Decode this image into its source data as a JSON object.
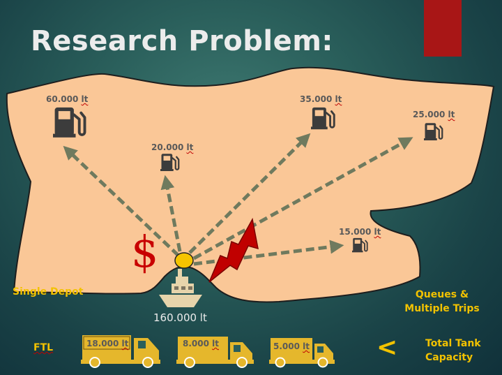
{
  "title": "Research Problem:",
  "stations": [
    {
      "value": "60.000",
      "unit": "lt"
    },
    {
      "value": "20.000",
      "unit": "lt"
    },
    {
      "value": "35.000",
      "unit": "lt"
    },
    {
      "value": "25.000",
      "unit": "lt"
    },
    {
      "value": "15.000",
      "unit": "lt"
    }
  ],
  "depot": {
    "label": "Single Depot",
    "ship_capacity": "160.000 lt",
    "ship_icon": "ship-icon"
  },
  "cost_symbol": "$",
  "queues": {
    "line1": "Queues &",
    "line2": "Multiple Trips"
  },
  "fleet": {
    "label": "FTL",
    "trucks": [
      {
        "value": "18.000",
        "unit": "lt"
      },
      {
        "value": "8.000",
        "unit": "lt"
      },
      {
        "value": "5.000",
        "unit": "lt"
      }
    ],
    "comparison": "<",
    "tank_label_line1": "Total Tank",
    "tank_label_line2": "Capacity"
  },
  "colors": {
    "land": "#fac797",
    "arrow": "#6f7a5e",
    "icon": "#3c3c3c",
    "accent_red": "#c00000",
    "yellow": "#f2c200",
    "depot": "#f5c400",
    "ship": "#e7d4ab",
    "truck": "#e5b72c"
  }
}
